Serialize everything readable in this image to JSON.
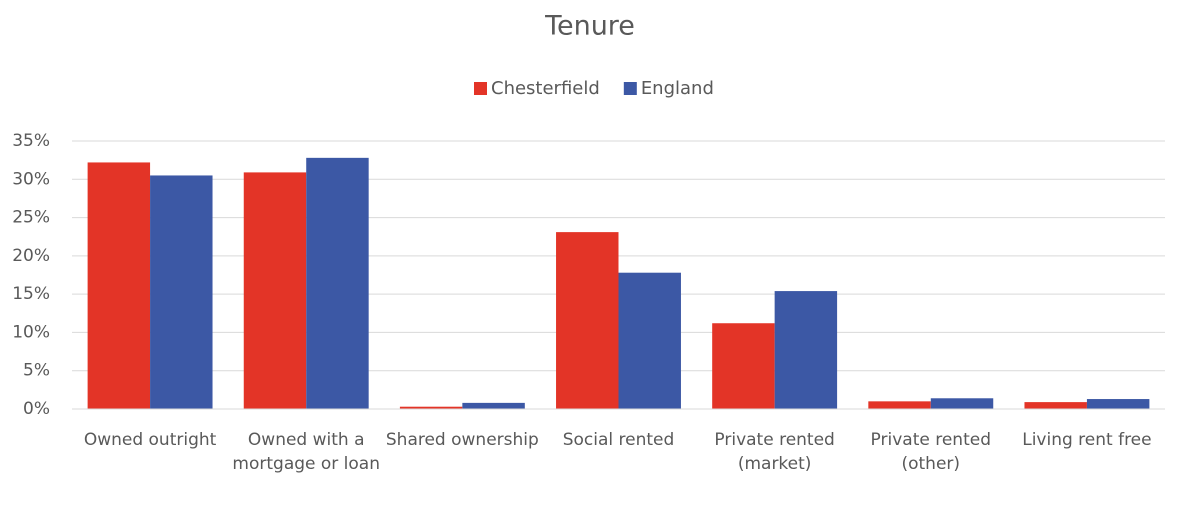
{
  "chart_data": {
    "type": "bar",
    "title": "Tenure",
    "categories": [
      "Owned outright",
      "Owned with a mortgage or loan",
      "Shared ownership",
      "Social rented",
      "Private rented (market)",
      "Private rented (other)",
      "Living rent free"
    ],
    "series": [
      {
        "name": "Chesterfield",
        "color": "#e33427",
        "values": [
          32.2,
          30.9,
          0.3,
          23.1,
          11.2,
          1.0,
          0.9
        ]
      },
      {
        "name": "England",
        "color": "#3c58a5",
        "values": [
          30.5,
          32.8,
          0.8,
          17.8,
          15.4,
          1.4,
          1.3
        ]
      }
    ],
    "ylim": [
      0,
      35
    ],
    "yticks": [
      {
        "value": 0,
        "label": "0%"
      },
      {
        "value": 5,
        "label": "5%"
      },
      {
        "value": 10,
        "label": "10%"
      },
      {
        "value": 15,
        "label": "15%"
      },
      {
        "value": 20,
        "label": "20%"
      },
      {
        "value": 25,
        "label": "25%"
      },
      {
        "value": 30,
        "label": "30%"
      },
      {
        "value": 35,
        "label": "35%"
      }
    ],
    "grid": true,
    "legend": "top"
  }
}
